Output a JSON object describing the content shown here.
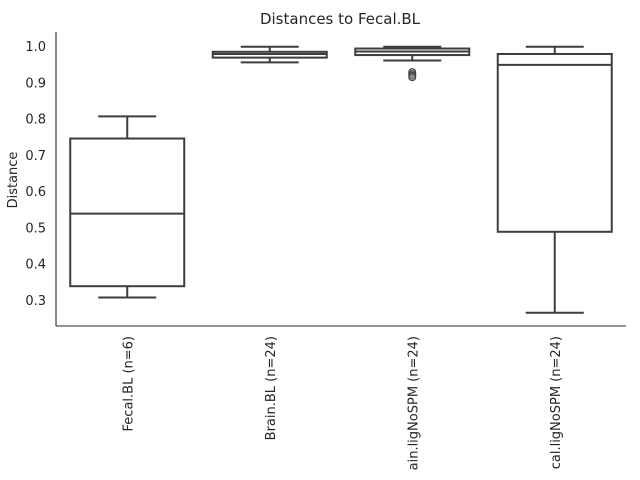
{
  "chart_data": {
    "type": "box",
    "title": "Distances to Fecal.BL",
    "ylabel": "Distance",
    "xlabel": "",
    "ylim": [
      0.22,
      1.04
    ],
    "yticks": [
      0.3,
      0.4,
      0.5,
      0.6,
      0.7,
      0.8,
      0.9,
      1.0
    ],
    "ytick_labels": [
      "0.3",
      "0.4",
      "0.5",
      "0.6",
      "0.7",
      "0.8",
      "0.9",
      "1.0"
    ],
    "grid": false,
    "categories": [
      "Fecal.BL (n=6)",
      "Brain.BL (n=24)",
      "ain.ligNoSPM (n=24)",
      "cal.ligNoSPM (n=24)"
    ],
    "boxes": [
      {
        "whisker_low": 0.307,
        "q1": 0.338,
        "median": 0.538,
        "q3": 0.745,
        "whisker_high": 0.806,
        "outliers": []
      },
      {
        "whisker_low": 0.955,
        "q1": 0.968,
        "median": 0.978,
        "q3": 0.984,
        "whisker_high": 0.998,
        "outliers": []
      },
      {
        "whisker_low": 0.96,
        "q1": 0.975,
        "median": 0.985,
        "q3": 0.993,
        "whisker_high": 0.998,
        "outliers": [
          0.928,
          0.922,
          0.918,
          0.914
        ]
      },
      {
        "whisker_low": 0.265,
        "q1": 0.488,
        "median": 0.948,
        "q3": 0.978,
        "whisker_high": 0.998,
        "outliers": []
      }
    ]
  }
}
